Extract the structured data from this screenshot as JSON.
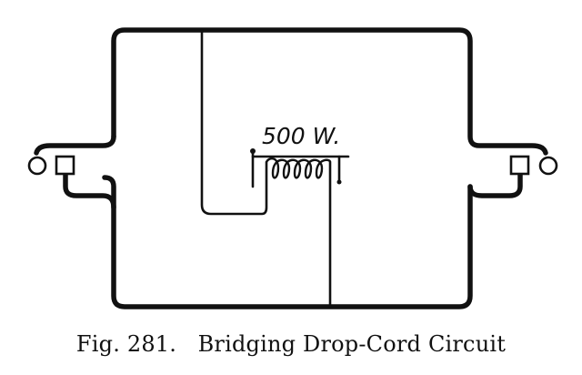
{
  "diagram": {
    "wattage_label": "500 W.",
    "caption": "Fig. 281.   Bridging Drop-Cord Circuit"
  }
}
